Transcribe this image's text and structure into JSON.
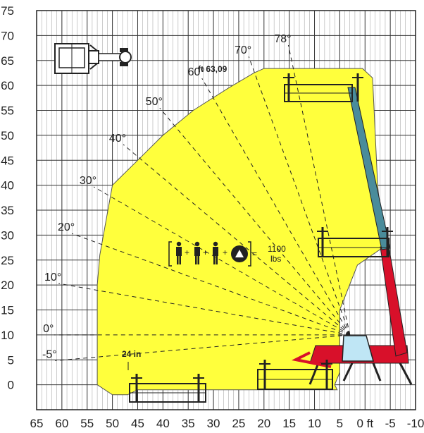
{
  "chart_data": {
    "type": "area",
    "xlim": [
      -10,
      65
    ],
    "ylim": [
      -5,
      75
    ],
    "x_ticks": [
      65,
      60,
      55,
      50,
      45,
      40,
      35,
      30,
      25,
      20,
      15,
      10,
      5,
      0,
      -5,
      -10
    ],
    "x_tick_labels": [
      "65",
      "60",
      "55",
      "50",
      "45",
      "40",
      "35",
      "30",
      "25",
      "20",
      "15",
      "10",
      "5",
      "0 ft",
      "-5",
      "-10"
    ],
    "y_ticks": [
      0,
      5,
      10,
      15,
      20,
      25,
      30,
      35,
      40,
      45,
      50,
      55,
      60,
      65,
      70,
      75
    ],
    "y_tick_labels": [
      "0",
      "5",
      "10",
      "15",
      "20",
      "25",
      "30",
      "35",
      "40",
      "45",
      "50",
      "55",
      "60",
      "65",
      "70",
      "75"
    ],
    "grid": true,
    "envelope": {
      "color": "#ffff3c",
      "points": [
        [
          53,
          0
        ],
        [
          53,
          20
        ],
        [
          52.5,
          26
        ],
        [
          50,
          40
        ],
        [
          45,
          45
        ],
        [
          40,
          50
        ],
        [
          34,
          55
        ],
        [
          27,
          59.5
        ],
        [
          22,
          62.5
        ],
        [
          20,
          63.4
        ],
        [
          0.5,
          63.4
        ],
        [
          -1.5,
          61.5
        ],
        [
          -2.5,
          40
        ],
        [
          -3.5,
          30
        ],
        [
          -3.5,
          27.5
        ],
        [
          1.5,
          24
        ],
        [
          5,
          15
        ],
        [
          5,
          2.5
        ],
        [
          6,
          0
        ],
        [
          5.5,
          -1
        ],
        [
          45,
          -1
        ],
        [
          47,
          -2
        ],
        [
          50,
          -2
        ],
        [
          53,
          0
        ]
      ]
    },
    "reach_lines": {
      "pivot": [
        3,
        10
      ],
      "angles": [
        -5,
        0,
        10,
        20,
        30,
        40,
        50,
        60,
        70,
        78
      ],
      "labels": [
        "-5°",
        "0°",
        "10°",
        "20°",
        "30°",
        "40°",
        "50°",
        "60°",
        "70°",
        "78°"
      ]
    },
    "annotations": {
      "max_height": "ft 63,09",
      "offset": "24 in"
    },
    "load": {
      "value": "1100",
      "unit": "lbs",
      "operator": "=",
      "plus": "+"
    }
  }
}
